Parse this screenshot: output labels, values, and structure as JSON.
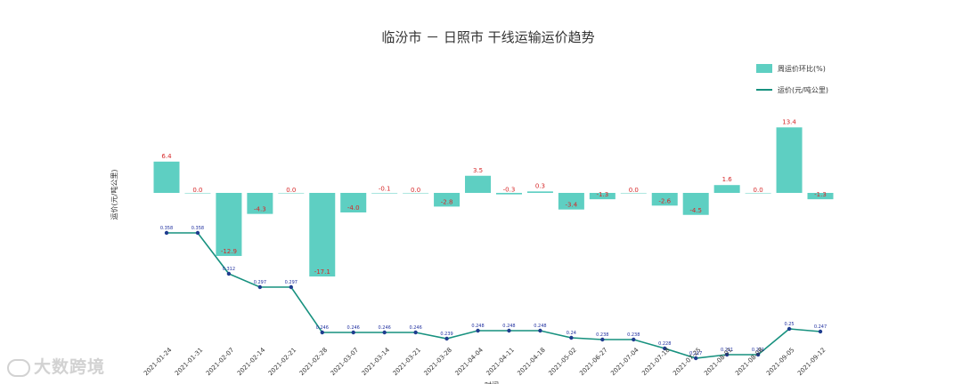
{
  "chart_data": {
    "type": "bar+line",
    "title": "临汾市 － 日照市 干线运输运价趋势",
    "ylabel": "运价(元/吨公里)",
    "xlabel": "时间",
    "legend": {
      "position": "top-right",
      "bar_series_name": "周运价环比(%)",
      "line_series_name": "运价(元/吨公里)"
    },
    "colors": {
      "bar": "#5ecfc2",
      "line": "#17917f",
      "bar_label": "#d62728",
      "line_label": "#1f2f9f",
      "point": "#1f3d8f"
    },
    "categories": [
      "2021-01-24",
      "2021-01-31",
      "2021-02-07",
      "2021-02-14",
      "2021-02-21",
      "2021-02-28",
      "2021-03-07",
      "2021-03-14",
      "2021-03-21",
      "2021-03-28",
      "2021-04-04",
      "2021-04-11",
      "2021-04-18",
      "2021-05-02",
      "2021-06-27",
      "2021-07-04",
      "2021-07-18",
      "2021-07-25",
      "2021-08-01",
      "2021-08-08",
      "2021-09-05",
      "2021-09-12"
    ],
    "bar_values": [
      6.4,
      0.0,
      -12.9,
      -4.3,
      0.0,
      -17.1,
      -4.0,
      -0.1,
      0.0,
      -2.8,
      3.5,
      -0.3,
      0.3,
      -3.4,
      -1.3,
      0.0,
      -2.6,
      -4.5,
      1.6,
      0.0,
      13.4,
      -1.3
    ],
    "bar_labels": [
      "6.4",
      "0.0",
      "-12.9",
      "-4.3",
      "0.0",
      "-17.1",
      "-4.0",
      "-0.1",
      "0.0",
      "-2.8",
      "3.5",
      "-0.3",
      "0.3",
      "-3.4",
      "-1.3",
      "0.0",
      "-2.6",
      "-4.5",
      "1.6",
      "0.0",
      "13.4",
      "-1.3"
    ],
    "line_values": [
      0.358,
      0.358,
      0.312,
      0.297,
      0.297,
      0.246,
      0.246,
      0.246,
      0.246,
      0.239,
      0.248,
      0.248,
      0.248,
      0.24,
      0.238,
      0.238,
      0.228,
      0.217,
      0.221,
      0.221,
      0.25,
      0.247
    ],
    "line_labels": [
      "0.358",
      "0.358",
      "0.312",
      "0.297",
      "0.297",
      "0.246",
      "0.246",
      "0.246",
      "0.246",
      "0.239",
      "0.248",
      "0.248",
      "0.248",
      "0.24",
      "0.238",
      "0.238",
      "0.228",
      "0.217",
      "0.221",
      "0.221",
      "0.25",
      "0.247"
    ]
  },
  "watermark": "大数跨境"
}
